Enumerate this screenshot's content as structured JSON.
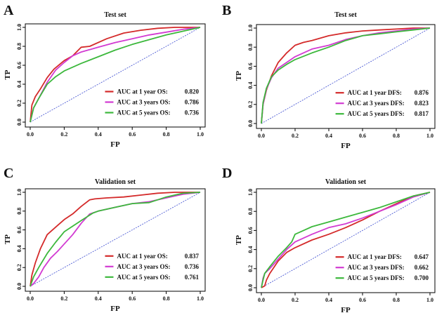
{
  "chart_data": [
    {
      "type": "line",
      "panel_label": "A",
      "title": "Test set",
      "xlabel": "FP",
      "ylabel": "TP",
      "xlim": [
        0,
        1
      ],
      "ylim": [
        0,
        1
      ],
      "x_ticks": [
        "0.0",
        "0.2",
        "0.4",
        "0.6",
        "0.8",
        "1.0"
      ],
      "y_ticks": [
        "0.0",
        "0.2",
        "0.4",
        "0.6",
        "0.8",
        "1.0"
      ],
      "legend_position": "bottom-right",
      "reference_line": "diagonal",
      "series": [
        {
          "name": "AUC at 1 year  OS:",
          "auc": "0.820",
          "color": "#d42a2a",
          "x": [
            0,
            0.01,
            0.03,
            0.06,
            0.1,
            0.14,
            0.2,
            0.25,
            0.3,
            0.35,
            0.45,
            0.55,
            0.65,
            0.75,
            0.85,
            1
          ],
          "y": [
            0,
            0.18,
            0.27,
            0.35,
            0.47,
            0.56,
            0.65,
            0.7,
            0.79,
            0.8,
            0.88,
            0.94,
            0.97,
            0.99,
            1,
            1
          ]
        },
        {
          "name": "AUC at 3 years OS:",
          "auc": "0.786",
          "color": "#d23ad2",
          "x": [
            0,
            0.02,
            0.05,
            0.1,
            0.15,
            0.2,
            0.25,
            0.3,
            0.4,
            0.5,
            0.6,
            0.7,
            0.8,
            0.9,
            1
          ],
          "y": [
            0,
            0.15,
            0.25,
            0.42,
            0.55,
            0.63,
            0.7,
            0.74,
            0.79,
            0.84,
            0.88,
            0.92,
            0.95,
            0.98,
            1
          ]
        },
        {
          "name": "AUC at 5 years OS:",
          "auc": "0.736",
          "color": "#3cb83c",
          "x": [
            0,
            0.02,
            0.05,
            0.1,
            0.15,
            0.2,
            0.3,
            0.4,
            0.5,
            0.6,
            0.7,
            0.8,
            0.9,
            1
          ],
          "y": [
            0,
            0.15,
            0.25,
            0.4,
            0.48,
            0.54,
            0.62,
            0.69,
            0.76,
            0.82,
            0.87,
            0.92,
            0.96,
            1
          ]
        }
      ]
    },
    {
      "type": "line",
      "panel_label": "B",
      "title": "Test set",
      "xlabel": "FP",
      "ylabel": "TP",
      "xlim": [
        0,
        1
      ],
      "ylim": [
        0,
        1
      ],
      "x_ticks": [
        "0.0",
        "0.2",
        "0.4",
        "0.6",
        "0.8",
        "1.0"
      ],
      "y_ticks": [
        "0.0",
        "0.2",
        "0.4",
        "0.6",
        "0.8",
        "1.0"
      ],
      "legend_position": "bottom-right",
      "reference_line": "diagonal",
      "series": [
        {
          "name": "AUC at 1 year  DFS:",
          "auc": "0.876",
          "color": "#d42a2a",
          "x": [
            0,
            0.01,
            0.03,
            0.06,
            0.1,
            0.15,
            0.2,
            0.25,
            0.3,
            0.4,
            0.5,
            0.6,
            0.7,
            0.8,
            0.9,
            1
          ],
          "y": [
            0,
            0.2,
            0.35,
            0.5,
            0.64,
            0.74,
            0.82,
            0.85,
            0.87,
            0.92,
            0.95,
            0.97,
            0.98,
            0.99,
            1,
            1
          ]
        },
        {
          "name": "AUC at 3 years DFS:",
          "auc": "0.823",
          "color": "#d23ad2",
          "x": [
            0,
            0.01,
            0.03,
            0.06,
            0.1,
            0.15,
            0.2,
            0.3,
            0.4,
            0.5,
            0.6,
            0.7,
            0.8,
            0.9,
            1
          ],
          "y": [
            0,
            0.2,
            0.36,
            0.48,
            0.58,
            0.64,
            0.7,
            0.78,
            0.82,
            0.88,
            0.92,
            0.95,
            0.97,
            0.99,
            1
          ]
        },
        {
          "name": "AUC at 5 years DFS:",
          "auc": "0.817",
          "color": "#3cb83c",
          "x": [
            0,
            0.01,
            0.03,
            0.06,
            0.1,
            0.15,
            0.2,
            0.3,
            0.4,
            0.5,
            0.6,
            0.7,
            0.8,
            0.9,
            1
          ],
          "y": [
            0,
            0.22,
            0.37,
            0.49,
            0.56,
            0.62,
            0.67,
            0.74,
            0.8,
            0.87,
            0.92,
            0.94,
            0.96,
            0.98,
            1
          ]
        }
      ]
    },
    {
      "type": "line",
      "panel_label": "C",
      "title": "Validation set",
      "xlabel": "FP",
      "ylabel": "TP",
      "xlim": [
        0,
        1
      ],
      "ylim": [
        0,
        1
      ],
      "x_ticks": [
        "0.0",
        "0.2",
        "0.4",
        "0.6",
        "0.8",
        "1.0"
      ],
      "y_ticks": [
        "0.0",
        "0.2",
        "0.4",
        "0.6",
        "0.8",
        "1.0"
      ],
      "legend_position": "bottom-right",
      "reference_line": "diagonal",
      "series": [
        {
          "name": "AUC at 1 year  OS:",
          "auc": "0.837",
          "color": "#d42a2a",
          "x": [
            0,
            0.01,
            0.03,
            0.06,
            0.1,
            0.15,
            0.2,
            0.25,
            0.3,
            0.35,
            0.38,
            0.45,
            0.55,
            0.65,
            0.75,
            0.85,
            1
          ],
          "y": [
            0,
            0.12,
            0.25,
            0.4,
            0.55,
            0.63,
            0.71,
            0.77,
            0.85,
            0.92,
            0.93,
            0.94,
            0.95,
            0.97,
            0.99,
            1,
            1
          ]
        },
        {
          "name": "AUC at 3 years OS:",
          "auc": "0.736",
          "color": "#d23ad2",
          "x": [
            0,
            0.02,
            0.05,
            0.08,
            0.12,
            0.16,
            0.2,
            0.25,
            0.3,
            0.35,
            0.4,
            0.5,
            0.6,
            0.7,
            0.8,
            0.9,
            1
          ],
          "y": [
            0,
            0.03,
            0.1,
            0.2,
            0.3,
            0.37,
            0.45,
            0.55,
            0.67,
            0.77,
            0.8,
            0.84,
            0.88,
            0.9,
            0.94,
            0.98,
            1
          ]
        },
        {
          "name": "AUC at 5 years OS:",
          "auc": "0.761",
          "color": "#3cb83c",
          "x": [
            0,
            0.02,
            0.05,
            0.1,
            0.15,
            0.2,
            0.25,
            0.3,
            0.37,
            0.4,
            0.5,
            0.6,
            0.7,
            0.8,
            0.9,
            1
          ],
          "y": [
            0,
            0.1,
            0.2,
            0.35,
            0.47,
            0.58,
            0.64,
            0.7,
            0.78,
            0.8,
            0.84,
            0.88,
            0.89,
            0.95,
            0.99,
            1
          ]
        }
      ]
    },
    {
      "type": "line",
      "panel_label": "D",
      "title": "Validation set",
      "xlabel": "FP",
      "ylabel": "TP",
      "xlim": [
        0,
        1
      ],
      "ylim": [
        0,
        1
      ],
      "x_ticks": [
        "0.0",
        "0.2",
        "0.4",
        "0.6",
        "0.8",
        "1.0"
      ],
      "y_ticks": [
        "0.0",
        "0.2",
        "0.4",
        "0.6",
        "0.8",
        "1.0"
      ],
      "legend_position": "bottom-right",
      "reference_line": "diagonal",
      "series": [
        {
          "name": "AUC at 1 year  DFS:",
          "auc": "0.647",
          "color": "#d42a2a",
          "x": [
            0,
            0.02,
            0.03,
            0.05,
            0.1,
            0.15,
            0.2,
            0.3,
            0.4,
            0.5,
            0.6,
            0.7,
            0.8,
            0.9,
            1
          ],
          "y": [
            0,
            0.02,
            0.08,
            0.15,
            0.28,
            0.37,
            0.42,
            0.5,
            0.56,
            0.63,
            0.71,
            0.8,
            0.88,
            0.96,
            1
          ]
        },
        {
          "name": "AUC at 3 years DFS:",
          "auc": "0.662",
          "color": "#d23ad2",
          "x": [
            0,
            0.01,
            0.02,
            0.05,
            0.1,
            0.15,
            0.2,
            0.3,
            0.4,
            0.5,
            0.6,
            0.7,
            0.8,
            0.9,
            1
          ],
          "y": [
            0,
            0.1,
            0.15,
            0.2,
            0.3,
            0.4,
            0.48,
            0.56,
            0.63,
            0.67,
            0.73,
            0.8,
            0.87,
            0.95,
            1
          ]
        },
        {
          "name": "AUC at 5 years DFS:",
          "auc": "0.700",
          "color": "#3cb83c",
          "x": [
            0,
            0.01,
            0.02,
            0.05,
            0.1,
            0.15,
            0.18,
            0.2,
            0.25,
            0.3,
            0.4,
            0.5,
            0.6,
            0.7,
            0.8,
            0.9,
            1
          ],
          "y": [
            0,
            0.08,
            0.15,
            0.22,
            0.33,
            0.42,
            0.48,
            0.56,
            0.6,
            0.64,
            0.69,
            0.74,
            0.79,
            0.84,
            0.9,
            0.96,
            1
          ]
        }
      ]
    }
  ]
}
